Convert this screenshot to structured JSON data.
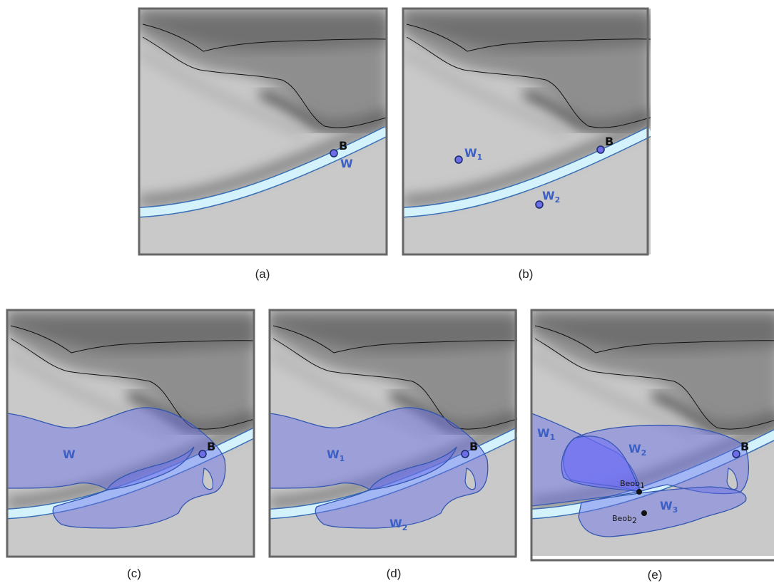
{
  "panels": [
    {
      "caption": "(a)",
      "labels": [
        {
          "text": "B"
        },
        {
          "text": "W"
        }
      ]
    },
    {
      "caption": "(b)",
      "labels": [
        {
          "text": "B"
        },
        {
          "text": "W",
          "sub": "1"
        },
        {
          "text": "W",
          "sub": "2"
        }
      ]
    },
    {
      "caption": "(c)",
      "labels": [
        {
          "text": "W"
        },
        {
          "text": "B"
        }
      ]
    },
    {
      "caption": "(d)",
      "labels": [
        {
          "text": "W",
          "sub": "1"
        },
        {
          "text": "W",
          "sub": "2"
        },
        {
          "text": "B"
        }
      ]
    },
    {
      "caption": "(e)",
      "labels": [
        {
          "text": "W",
          "sub": "1"
        },
        {
          "text": "W",
          "sub": "2"
        },
        {
          "text": "W",
          "sub": "3"
        },
        {
          "text": "B"
        },
        {
          "text": "Beob",
          "sub": "1"
        },
        {
          "text": "Beob",
          "sub": "2"
        }
      ]
    }
  ]
}
